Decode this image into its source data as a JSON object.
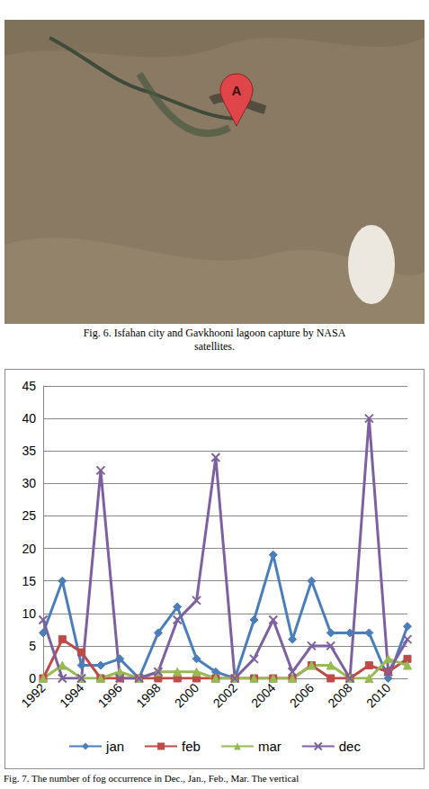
{
  "fig6": {
    "marker_label": "A",
    "caption": "Fig. 6. Isfahan city and Gavkhooni lagoon capture by NASA satellites."
  },
  "chart_data": {
    "type": "line",
    "categories": [
      "1992",
      null,
      "1994",
      null,
      "1996",
      null,
      "1998",
      null,
      "2000",
      null,
      "2002",
      null,
      "2004",
      null,
      "2006",
      null,
      "2008",
      null,
      "2010",
      null
    ],
    "series": [
      {
        "name": "jan",
        "color": "#4a7ebb",
        "marker": "diamond",
        "values": [
          7,
          15,
          2,
          2,
          3,
          0,
          7,
          11,
          3,
          1,
          0,
          9,
          19,
          6,
          15,
          7,
          7,
          7,
          0,
          8
        ]
      },
      {
        "name": "feb",
        "color": "#be4b48",
        "marker": "square",
        "values": [
          0,
          6,
          4,
          0,
          0,
          0,
          0,
          0,
          0,
          0,
          0,
          0,
          0,
          0,
          2,
          0,
          0,
          2,
          1,
          3
        ]
      },
      {
        "name": "mar",
        "color": "#98b954",
        "marker": "triangle",
        "values": [
          0,
          2,
          0,
          0,
          1,
          0,
          1,
          1,
          1,
          0,
          0,
          0,
          0,
          0,
          2,
          2,
          0,
          0,
          3,
          2
        ]
      },
      {
        "name": "dec",
        "color": "#7d60a0",
        "marker": "x",
        "values": [
          9,
          0,
          0,
          32,
          0,
          0,
          1,
          9,
          12,
          34,
          0,
          3,
          9,
          1,
          5,
          5,
          0,
          40,
          1,
          6
        ]
      }
    ],
    "ylim": [
      0,
      45
    ],
    "yticks": [
      0,
      5,
      10,
      15,
      20,
      25,
      30,
      35,
      40,
      45
    ],
    "grid": true,
    "legend": "bottom"
  },
  "fig7_caption": "Fig. 7. The number of fog occurrence in Dec., Jan., Feb., Mar. The vertical"
}
